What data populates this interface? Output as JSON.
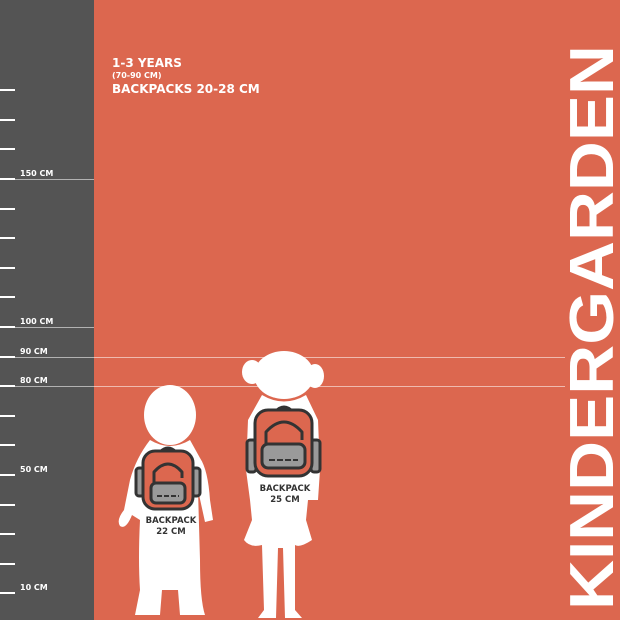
{
  "colors": {
    "background": "#dc674f",
    "ruler": "#545454",
    "silhouette": "#ffffff",
    "backpack_body": "#dc674f",
    "backpack_pocket": "#9a9a9a",
    "outline": "#333333"
  },
  "ruler": {
    "unit": "CM",
    "tick_step_cm": 10,
    "ticks_cm": [
      180,
      170,
      160,
      150,
      140,
      130,
      120,
      110,
      100,
      90,
      80,
      70,
      60,
      50,
      40,
      30,
      20,
      10
    ],
    "labels": [
      {
        "cm": 150,
        "text": "150 CM"
      },
      {
        "cm": 100,
        "text": "100 CM"
      },
      {
        "cm": 90,
        "text": "90 CM"
      },
      {
        "cm": 80,
        "text": "80 CM"
      },
      {
        "cm": 50,
        "text": "50 CM"
      },
      {
        "cm": 10,
        "text": "10 CM"
      }
    ]
  },
  "info": {
    "age": "1-3 YEARS",
    "height_range": "(70-90 CM)",
    "backpacks": "BACKPACKS 20-28 CM"
  },
  "title": "KINDERGARDEN",
  "figures": [
    {
      "name": "boy",
      "backpack_label": "BACKPACK",
      "backpack_size": "22 CM",
      "icon": "backpack-icon"
    },
    {
      "name": "girl",
      "backpack_label": "BACKPACK",
      "backpack_size": "25 CM",
      "icon": "backpack-icon"
    }
  ]
}
